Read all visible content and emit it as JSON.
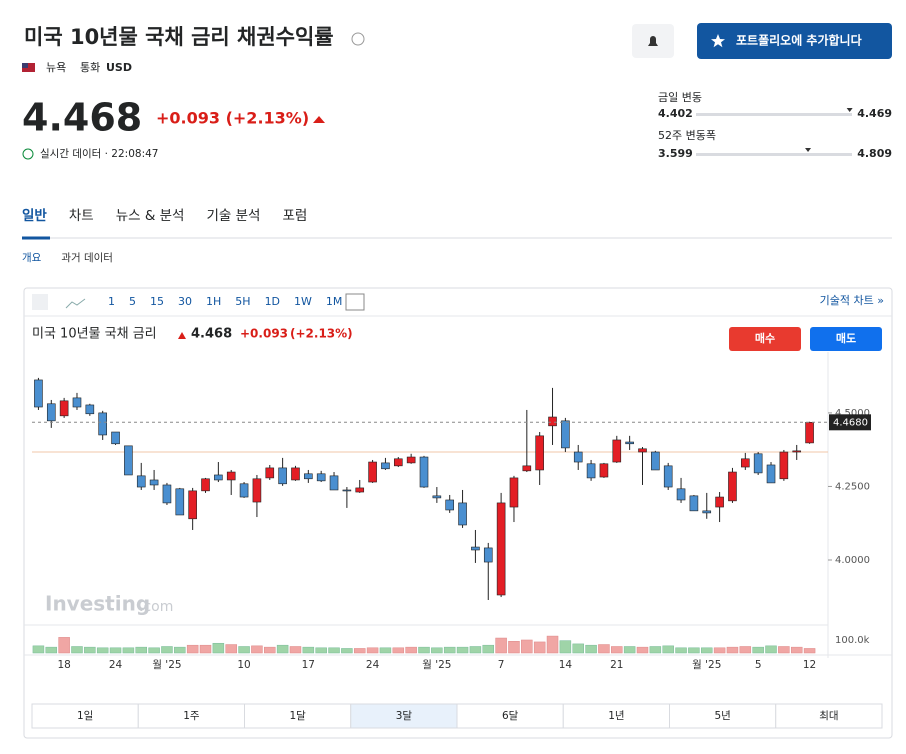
{
  "header": {
    "title": "미국 10년물 국채 금리 채권수익률",
    "exchange": "뉴욕",
    "currency_label": "통화",
    "currency": "USD",
    "add_button": "포트폴리오에 추가합니다",
    "price": 4.468,
    "change": "+0.093 (+2.13%)",
    "realtime": "실시간 데이터 · 22:08:47",
    "day_range": {
      "label": "금일 변동",
      "low": 4.402,
      "high": 4.469
    },
    "week52_range": {
      "label": "52주 변동폭",
      "low": 3.599,
      "high": 4.809
    }
  },
  "tabs": [
    "일반",
    "차트",
    "뉴스 & 분석",
    "기술 분석",
    "포럼"
  ],
  "subtabs": [
    "개요",
    "과거 데이터"
  ],
  "toolbar": {
    "intervals": [
      "1",
      "5",
      "15",
      "30",
      "1H",
      "5H",
      "1D",
      "1W",
      "1M"
    ],
    "tech_link": "기술적 차트 »"
  },
  "chart_data": {
    "type": "candlestick",
    "title": "미국 10년물 국채 금리",
    "legend_change": "+0.093",
    "legend_pct": "(+2.13%)",
    "buy": "매수",
    "sell": "매도",
    "last_label": "4.4680",
    "watermark": "Investing",
    "watermark_suffix": ".com",
    "up_color": "#e31e25",
    "down_color": "#4a8fd0",
    "reference_line": 4.367,
    "categories": [
      null,
      null,
      "18",
      null,
      null,
      null,
      "24",
      null,
      null,
      null,
      "월 '25",
      null,
      null,
      null,
      null,
      null,
      "10",
      null,
      null,
      null,
      null,
      "17",
      null,
      null,
      null,
      null,
      "24",
      null,
      null,
      null,
      null,
      "월 '25",
      null,
      null,
      null,
      null,
      "7",
      null,
      null,
      null,
      null,
      "14",
      null,
      null,
      null,
      "21",
      null,
      null,
      null,
      null,
      null,
      null,
      "월 '25",
      null,
      null,
      null,
      "5",
      null,
      null,
      null,
      "12"
    ],
    "open": [
      4.612,
      4.531,
      4.49,
      4.551,
      4.527,
      4.5,
      4.435,
      4.388,
      4.286,
      4.272,
      4.255,
      4.242,
      4.14,
      4.235,
      4.289,
      4.272,
      4.259,
      4.197,
      4.279,
      4.313,
      4.272,
      4.293,
      4.293,
      4.286,
      4.238,
      4.231,
      4.265,
      4.33,
      4.32,
      4.33,
      4.35,
      4.218,
      4.204,
      4.194,
      4.044,
      4.041,
      3.881,
      4.18,
      4.303,
      4.306,
      4.456,
      4.473,
      4.367,
      4.327,
      4.282,
      4.333,
      4.401,
      4.367,
      4.367,
      4.32,
      4.242,
      4.218,
      4.167,
      4.18,
      4.201,
      4.316,
      4.361,
      4.323,
      4.276,
      4.367,
      4.398
    ],
    "high": [
      4.619,
      4.544,
      4.551,
      4.568,
      4.531,
      4.507,
      4.435,
      4.388,
      4.33,
      4.306,
      4.262,
      4.245,
      4.245,
      4.279,
      4.333,
      4.306,
      4.265,
      4.289,
      4.323,
      4.347,
      4.32,
      4.306,
      4.303,
      4.299,
      4.248,
      4.272,
      4.34,
      4.347,
      4.35,
      4.361,
      4.354,
      4.248,
      4.221,
      4.238,
      4.102,
      4.058,
      4.228,
      4.286,
      4.51,
      4.435,
      4.585,
      4.483,
      4.391,
      4.34,
      4.33,
      4.422,
      4.422,
      4.384,
      4.371,
      4.33,
      4.279,
      4.221,
      4.228,
      4.231,
      4.313,
      4.364,
      4.367,
      4.333,
      4.374,
      4.391,
      4.47
    ],
    "low": [
      4.51,
      4.449,
      4.483,
      4.51,
      4.49,
      4.408,
      4.391,
      4.289,
      4.238,
      4.238,
      4.187,
      4.153,
      4.102,
      4.228,
      4.265,
      4.221,
      4.211,
      4.146,
      4.272,
      4.252,
      4.269,
      4.262,
      4.265,
      4.238,
      4.177,
      4.228,
      4.262,
      4.306,
      4.316,
      4.327,
      4.245,
      4.194,
      4.16,
      4.109,
      3.99,
      3.864,
      3.874,
      4.129,
      4.299,
      4.255,
      4.391,
      4.367,
      4.306,
      4.269,
      4.279,
      4.33,
      4.374,
      4.255,
      4.306,
      4.238,
      4.194,
      4.167,
      4.14,
      4.129,
      4.194,
      4.306,
      4.289,
      4.262,
      4.269,
      4.34,
      4.395
    ],
    "close": [
      4.52,
      4.473,
      4.541,
      4.52,
      4.497,
      4.425,
      4.395,
      4.289,
      4.248,
      4.255,
      4.194,
      4.153,
      4.235,
      4.276,
      4.272,
      4.299,
      4.214,
      4.276,
      4.313,
      4.259,
      4.313,
      4.276,
      4.269,
      4.238,
      4.235,
      4.245,
      4.333,
      4.31,
      4.344,
      4.35,
      4.248,
      4.211,
      4.17,
      4.119,
      4.034,
      3.993,
      4.194,
      4.279,
      4.32,
      4.422,
      4.486,
      4.381,
      4.333,
      4.279,
      4.327,
      4.408,
      4.395,
      4.378,
      4.306,
      4.248,
      4.204,
      4.167,
      4.16,
      4.214,
      4.299,
      4.344,
      4.296,
      4.262,
      4.367,
      4.371,
      4.468
    ],
    "volume": [
      55000,
      45000,
      120000,
      50000,
      45000,
      40000,
      40000,
      40000,
      45000,
      40000,
      50000,
      45000,
      60000,
      60000,
      75000,
      65000,
      50000,
      55000,
      45000,
      60000,
      50000,
      45000,
      40000,
      40000,
      35000,
      35000,
      40000,
      40000,
      40000,
      45000,
      45000,
      40000,
      45000,
      45000,
      50000,
      60000,
      115000,
      90000,
      100000,
      85000,
      130000,
      95000,
      70000,
      60000,
      65000,
      50000,
      50000,
      45000,
      50000,
      55000,
      40000,
      40000,
      40000,
      40000,
      45000,
      50000,
      45000,
      55000,
      50000,
      45000,
      35000
    ],
    "ylim": [
      3.796,
      4.707
    ],
    "yticks": [
      {
        "value": 4.5,
        "label": "4.5000"
      },
      {
        "value": 4.25,
        "label": "4.2500"
      },
      {
        "value": 4.0,
        "label": "4.0000"
      }
    ],
    "volume_lim": [
      0,
      215000
    ],
    "volume_ticks": [
      {
        "value": 100000,
        "label": "100.0k"
      }
    ],
    "ranges": [
      "1일",
      "1주",
      "1달",
      "3달",
      "6달",
      "1년",
      "5년",
      "최대"
    ],
    "active_range": "3달"
  }
}
